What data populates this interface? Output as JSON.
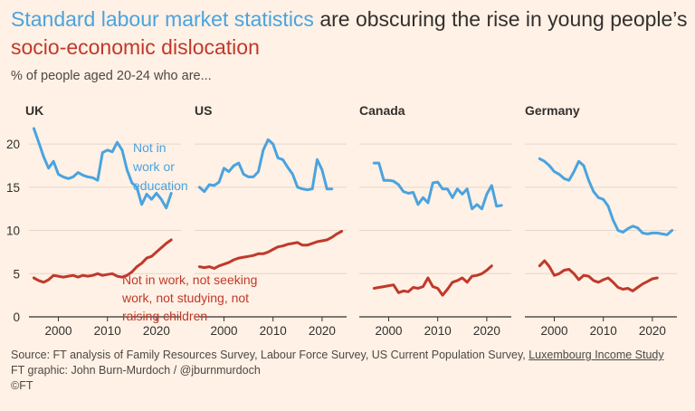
{
  "header": {
    "title_blue": "Standard labour market statistics",
    "title_rest_1": " are obscuring the rise in young people’s ",
    "title_red": "socio-economic dislocation",
    "subtitle": "% of people aged 20-24 who are..."
  },
  "footer": {
    "source_prefix": "Source: FT analysis of Family Resources Survey, Labour Force Survey, US Current Population Survey, ",
    "source_link": "Luxembourg Income Study",
    "graphic": "FT graphic: John Burn-Murdoch / @jburnmurdoch",
    "copyright": "©FT"
  },
  "colors": {
    "background": "#FFF1E5",
    "blue": "#4AA3DF",
    "red": "#C0392B",
    "grid": "#E3D6CB",
    "axis": "#33302E"
  },
  "annotations": {
    "blue_lines": [
      "Not in",
      "work or",
      "education"
    ],
    "red_lines": [
      "Not in work, not seeking",
      "work, not studying, not",
      "raising children"
    ]
  },
  "chart_data": {
    "type": "line",
    "ylim": [
      0,
      22
    ],
    "xlim": [
      1994,
      2025
    ],
    "y_ticks": [
      0,
      5,
      10,
      15,
      20
    ],
    "x_ticks": [
      2000,
      2010,
      2020
    ],
    "grid": true,
    "panels": [
      {
        "name": "UK",
        "series": [
          {
            "x": [
              1995,
              1996,
              1997,
              1998,
              1999,
              2000,
              2001,
              2002,
              2003,
              2004,
              2005,
              2006,
              2007,
              2008,
              2009,
              2010,
              2011,
              2012,
              2013,
              2014,
              2015,
              2016,
              2017,
              2018,
              2019,
              2020,
              2021,
              2022,
              2023
            ],
            "values": [
              21.8,
              20.2,
              18.5,
              17.2,
              18.0,
              16.5,
              16.2,
              16.0,
              16.2,
              16.7,
              16.4,
              16.2,
              16.1,
              15.8,
              19.0,
              19.3,
              19.1,
              20.2,
              19.3,
              17.0,
              15.5,
              15.0,
              13.0,
              14.2,
              13.6,
              14.3,
              13.6,
              12.6,
              14.3
            ]
          },
          {
            "x": [
              1995,
              1996,
              1997,
              1998,
              1999,
              2000,
              2001,
              2002,
              2003,
              2004,
              2005,
              2006,
              2007,
              2008,
              2009,
              2010,
              2011,
              2012,
              2013,
              2014,
              2015,
              2016,
              2017,
              2018,
              2019,
              2020,
              2021,
              2022,
              2023
            ],
            "values": [
              4.5,
              4.2,
              4.0,
              4.3,
              4.8,
              4.7,
              4.6,
              4.7,
              4.8,
              4.6,
              4.8,
              4.7,
              4.8,
              5.0,
              4.8,
              4.9,
              5.0,
              4.7,
              4.6,
              4.8,
              5.2,
              5.8,
              6.2,
              6.8,
              7.0,
              7.5,
              8.0,
              8.5,
              8.9
            ]
          }
        ]
      },
      {
        "name": "US",
        "series": [
          {
            "x": [
              1995,
              1996,
              1997,
              1998,
              1999,
              2000,
              2001,
              2002,
              2003,
              2004,
              2005,
              2006,
              2007,
              2008,
              2009,
              2010,
              2011,
              2012,
              2013,
              2014,
              2015,
              2016,
              2017,
              2018,
              2019,
              2020,
              2021,
              2022
            ],
            "values": [
              15.0,
              14.5,
              15.3,
              15.2,
              15.6,
              17.2,
              16.8,
              17.5,
              17.8,
              16.5,
              16.2,
              16.2,
              16.8,
              19.3,
              20.5,
              20.0,
              18.4,
              18.2,
              17.3,
              16.5,
              15.0,
              14.8,
              14.7,
              14.8,
              18.2,
              17.0,
              14.8,
              14.8
            ]
          },
          {
            "x": [
              1995,
              1996,
              1997,
              1998,
              1999,
              2000,
              2001,
              2002,
              2003,
              2004,
              2005,
              2006,
              2007,
              2008,
              2009,
              2010,
              2011,
              2012,
              2013,
              2014,
              2015,
              2016,
              2017,
              2018,
              2019,
              2020,
              2021,
              2022,
              2023,
              2024
            ],
            "values": [
              5.8,
              5.7,
              5.8,
              5.6,
              5.9,
              6.1,
              6.3,
              6.6,
              6.8,
              6.9,
              7.0,
              7.1,
              7.3,
              7.3,
              7.5,
              7.8,
              8.1,
              8.2,
              8.4,
              8.5,
              8.6,
              8.3,
              8.3,
              8.5,
              8.7,
              8.8,
              8.9,
              9.2,
              9.6,
              9.9
            ]
          }
        ]
      },
      {
        "name": "Canada",
        "series": [
          {
            "x": [
              1997,
              1998,
              1999,
              2000,
              2001,
              2002,
              2003,
              2004,
              2005,
              2006,
              2007,
              2008,
              2009,
              2010,
              2011,
              2012,
              2013,
              2014,
              2015,
              2016,
              2017,
              2018,
              2019,
              2020,
              2021,
              2022,
              2023
            ],
            "values": [
              17.8,
              17.8,
              15.8,
              15.8,
              15.7,
              15.3,
              14.5,
              14.3,
              14.4,
              13.0,
              13.8,
              13.2,
              15.5,
              15.6,
              14.8,
              14.8,
              13.8,
              14.8,
              14.2,
              14.8,
              12.5,
              13.0,
              12.5,
              14.2,
              15.2,
              12.8,
              12.9
            ]
          },
          {
            "x": [
              1997,
              1998,
              1999,
              2000,
              2001,
              2002,
              2003,
              2004,
              2005,
              2006,
              2007,
              2008,
              2009,
              2010,
              2011,
              2012,
              2013,
              2014,
              2015,
              2016,
              2017,
              2018,
              2019,
              2020,
              2021
            ],
            "values": [
              3.3,
              3.4,
              3.5,
              3.6,
              3.7,
              2.8,
              3.0,
              2.9,
              3.4,
              3.3,
              3.5,
              4.5,
              3.5,
              3.3,
              2.5,
              3.2,
              4.0,
              4.2,
              4.5,
              4.0,
              4.7,
              4.8,
              5.0,
              5.4,
              5.9
            ]
          }
        ]
      },
      {
        "name": "Germany",
        "series": [
          {
            "x": [
              1997,
              1998,
              1999,
              2000,
              2001,
              2002,
              2003,
              2004,
              2005,
              2006,
              2007,
              2008,
              2009,
              2010,
              2011,
              2012,
              2013,
              2014,
              2015,
              2016,
              2017,
              2018,
              2019,
              2020,
              2021,
              2022,
              2023,
              2024
            ],
            "values": [
              18.3,
              18.0,
              17.5,
              16.8,
              16.5,
              16.0,
              15.8,
              16.8,
              18.0,
              17.5,
              15.8,
              14.5,
              13.8,
              13.6,
              12.8,
              11.2,
              10.0,
              9.8,
              10.2,
              10.5,
              10.3,
              9.7,
              9.6,
              9.7,
              9.7,
              9.6,
              9.5,
              10.0
            ]
          },
          {
            "x": [
              1997,
              1998,
              1999,
              2000,
              2001,
              2002,
              2003,
              2004,
              2005,
              2006,
              2007,
              2008,
              2009,
              2010,
              2011,
              2012,
              2013,
              2014,
              2015,
              2016,
              2017,
              2018,
              2019,
              2020,
              2021
            ],
            "values": [
              5.9,
              6.5,
              5.8,
              4.8,
              5.0,
              5.4,
              5.5,
              5.0,
              4.3,
              4.8,
              4.7,
              4.2,
              4.0,
              4.3,
              4.5,
              4.0,
              3.4,
              3.2,
              3.3,
              3.0,
              3.4,
              3.8,
              4.1,
              4.4,
              4.5
            ]
          }
        ]
      }
    ]
  }
}
